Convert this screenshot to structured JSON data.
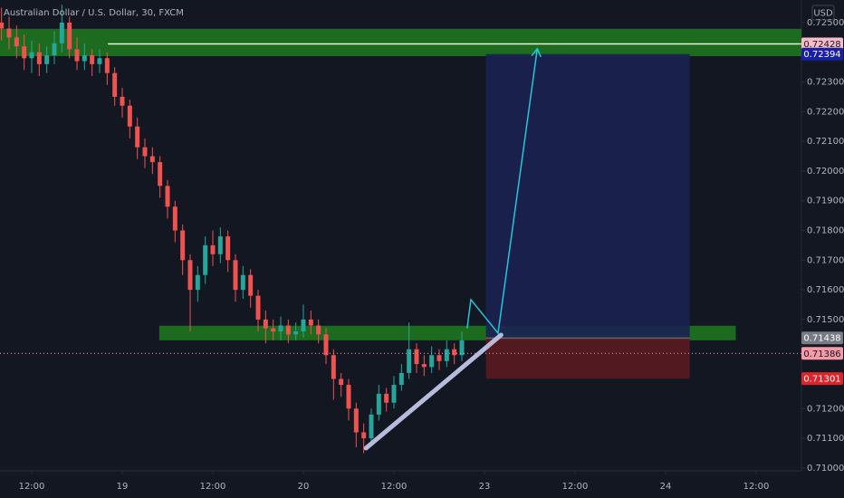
{
  "chart_data": {
    "type": "candlestick",
    "title": "Australian Dollar / U.S. Dollar, 30, FXCM",
    "currency": "USD",
    "up_color": "#26a69a",
    "down_color": "#ef5350",
    "grid": false,
    "xlim": [
      7.8,
      114
    ],
    "xticks": [
      {
        "value": 12,
        "label": "12:00"
      },
      {
        "value": 24,
        "label": "19"
      },
      {
        "value": 36,
        "label": "12:00"
      },
      {
        "value": 48,
        "label": "20"
      },
      {
        "value": 60,
        "label": "12:00"
      },
      {
        "value": 72,
        "label": "23"
      },
      {
        "value": 84,
        "label": "12:00"
      },
      {
        "value": 96,
        "label": "24"
      },
      {
        "value": 108,
        "label": "12:00"
      }
    ],
    "ylim": [
      0.7096,
      0.72576
    ],
    "yticks": [
      {
        "value": 0.71,
        "label": "0.71000"
      },
      {
        "value": 0.711,
        "label": "0.71100"
      },
      {
        "value": 0.712,
        "label": "0.71200"
      },
      {
        "value": 0.715,
        "label": "0.71500"
      },
      {
        "value": 0.716,
        "label": "0.71600"
      },
      {
        "value": 0.717,
        "label": "0.71700"
      },
      {
        "value": 0.718,
        "label": "0.71800"
      },
      {
        "value": 0.719,
        "label": "0.71900"
      },
      {
        "value": 0.72,
        "label": "0.72000"
      },
      {
        "value": 0.721,
        "label": "0.72100"
      },
      {
        "value": 0.722,
        "label": "0.72200"
      },
      {
        "value": 0.723,
        "label": "0.72300"
      },
      {
        "value": 0.725,
        "label": "0.72500"
      }
    ],
    "x": [
      8,
      9,
      10,
      11,
      12,
      13,
      14,
      15,
      16,
      17,
      18,
      19,
      20,
      21,
      22,
      23,
      24,
      25,
      26,
      27,
      28,
      29,
      30,
      31,
      32,
      33,
      34,
      35,
      36,
      37,
      38,
      39,
      40,
      41,
      42,
      43,
      44,
      45,
      46,
      47,
      48,
      49,
      50,
      51,
      52,
      53,
      54,
      55,
      56,
      57,
      58,
      59,
      60,
      61,
      62,
      63,
      64,
      65,
      66,
      67,
      68,
      69
    ],
    "open": [
      0.725,
      0.7248,
      0.7245,
      0.7242,
      0.7238,
      0.724,
      0.7236,
      0.7239,
      0.7243,
      0.725,
      0.7241,
      0.7237,
      0.7239,
      0.7236,
      0.7238,
      0.7233,
      0.7225,
      0.7222,
      0.7215,
      0.7208,
      0.7205,
      0.7203,
      0.7195,
      0.7188,
      0.718,
      0.717,
      0.716,
      0.7165,
      0.7175,
      0.7172,
      0.7178,
      0.717,
      0.716,
      0.7165,
      0.7158,
      0.715,
      0.7147,
      0.7146,
      0.7148,
      0.7145,
      0.7146,
      0.715,
      0.7148,
      0.7145,
      0.7138,
      0.713,
      0.7128,
      0.712,
      0.7112,
      0.711,
      0.7118,
      0.7125,
      0.7122,
      0.7128,
      0.7132,
      0.714,
      0.7135,
      0.7134,
      0.7138,
      0.7136,
      0.714,
      0.7138
    ],
    "high": [
      0.7255,
      0.7252,
      0.7249,
      0.7246,
      0.7244,
      0.7243,
      0.7242,
      0.7247,
      0.7256,
      0.7252,
      0.7245,
      0.7243,
      0.7241,
      0.7241,
      0.724,
      0.7235,
      0.7228,
      0.7224,
      0.7218,
      0.7211,
      0.7208,
      0.7205,
      0.7197,
      0.719,
      0.7182,
      0.7172,
      0.7168,
      0.7178,
      0.718,
      0.7181,
      0.718,
      0.7172,
      0.7168,
      0.7167,
      0.716,
      0.7153,
      0.715,
      0.7151,
      0.715,
      0.7149,
      0.7155,
      0.7153,
      0.715,
      0.7147,
      0.714,
      0.7132,
      0.713,
      0.7122,
      0.7115,
      0.712,
      0.7128,
      0.7127,
      0.7131,
      0.7135,
      0.7149,
      0.7142,
      0.7138,
      0.7141,
      0.714,
      0.7143,
      0.7142,
      0.7146
    ],
    "low": [
      0.7244,
      0.7241,
      0.7238,
      0.7234,
      0.7233,
      0.7232,
      0.7233,
      0.7236,
      0.724,
      0.7238,
      0.7234,
      0.7234,
      0.7232,
      0.7233,
      0.7229,
      0.7222,
      0.7218,
      0.7211,
      0.7204,
      0.7201,
      0.7199,
      0.7191,
      0.7184,
      0.7176,
      0.7165,
      0.7146,
      0.7156,
      0.7162,
      0.7168,
      0.7169,
      0.7166,
      0.7156,
      0.7157,
      0.7154,
      0.7146,
      0.7142,
      0.7143,
      0.7143,
      0.7142,
      0.7143,
      0.7144,
      0.7145,
      0.7142,
      0.7135,
      0.7123,
      0.7124,
      0.7116,
      0.7107,
      0.7105,
      0.7108,
      0.7116,
      0.7119,
      0.712,
      0.7126,
      0.713,
      0.7132,
      0.7131,
      0.7132,
      0.7133,
      0.7134,
      0.7135,
      0.7136
    ],
    "close": [
      0.7248,
      0.7245,
      0.7242,
      0.7238,
      0.724,
      0.7236,
      0.7239,
      0.7243,
      0.725,
      0.7241,
      0.7237,
      0.7239,
      0.7236,
      0.7238,
      0.7233,
      0.7225,
      0.7222,
      0.7215,
      0.7208,
      0.7205,
      0.7203,
      0.7195,
      0.7188,
      0.718,
      0.717,
      0.716,
      0.7165,
      0.7175,
      0.7172,
      0.7178,
      0.717,
      0.716,
      0.7165,
      0.7158,
      0.715,
      0.7147,
      0.7146,
      0.7148,
      0.7145,
      0.7146,
      0.715,
      0.7148,
      0.7145,
      0.7138,
      0.713,
      0.7128,
      0.712,
      0.7112,
      0.711,
      0.7118,
      0.7125,
      0.7122,
      0.7128,
      0.7132,
      0.714,
      0.7135,
      0.7134,
      0.7138,
      0.7136,
      0.714,
      0.7138,
      0.7143
    ],
    "zones": [
      {
        "x0": 7.8,
        "x1": 114,
        "top": 0.72479,
        "bottom": 0.72387,
        "color": "#1e7a1e"
      },
      {
        "x0": 28.9,
        "x1": 105.3,
        "top": 0.71479,
        "bottom": 0.7143,
        "color": "#1e7a1e"
      }
    ],
    "position": {
      "x0": 72.2,
      "x1": 99.2,
      "entry": 0.71438,
      "target": 0.72394,
      "stop": 0.71301,
      "profit_color": "#1a2150",
      "loss_color": "#5a1a20"
    },
    "target_line": {
      "x0": 22.1,
      "value": 0.72428,
      "color": "#e8f0d8"
    },
    "trend_line": {
      "x": [
        56.3,
        74.2
      ],
      "y": [
        0.71067,
        0.71448
      ],
      "color": "#b8bcdc"
    },
    "projection": {
      "x": [
        69.7,
        70.2,
        73.8,
        79.0
      ],
      "y": [
        0.7147,
        0.71567,
        0.71454,
        0.72412
      ],
      "color": "#26c6da"
    },
    "current_price": 0.71386,
    "levels": [
      {
        "value": 0.72428,
        "color": "#f8bbc8",
        "text_color": "#131722"
      },
      {
        "value": 0.72394,
        "color": "#1a1fa8",
        "text_color": "#ffffff"
      },
      {
        "value": 0.71438,
        "color": "#787b86",
        "text_color": "#ffffff"
      },
      {
        "value": 0.71386,
        "color": "#f59aa6",
        "text_color": "#131722"
      },
      {
        "value": 0.71301,
        "color": "#e02329",
        "text_color": "#ffffff"
      }
    ]
  }
}
